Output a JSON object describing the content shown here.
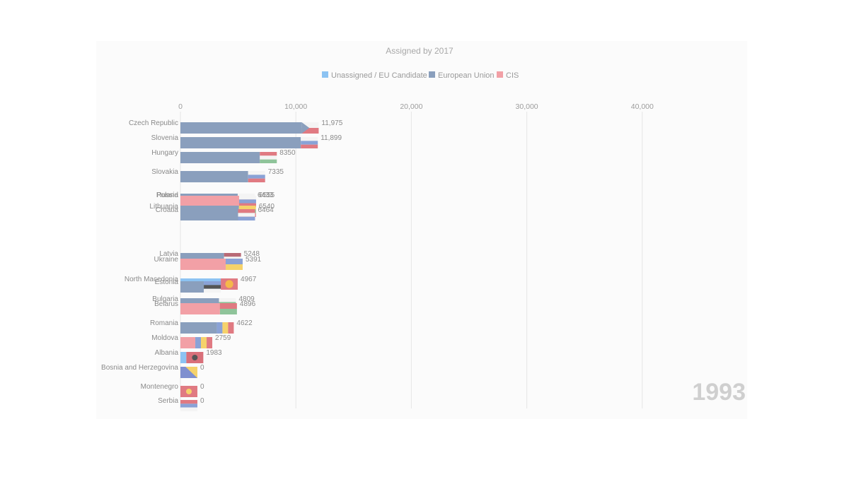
{
  "chart_data": {
    "type": "bar",
    "title": "Assigned by 2017",
    "year": "1993",
    "legend": [
      {
        "name": "Unassigned / EU Candidate",
        "color": "#8cc3f2"
      },
      {
        "name": "European Union",
        "color": "#8a9fbd"
      },
      {
        "name": "CIS",
        "color": "#f2a0a6"
      }
    ],
    "legend_position": "top",
    "xlim": [
      0,
      48000
    ],
    "xticks": [
      {
        "value": 0,
        "label": "0"
      },
      {
        "value": 10000,
        "label": "10,000"
      },
      {
        "value": 20000,
        "label": "20,000"
      },
      {
        "value": 30000,
        "label": "30,000"
      },
      {
        "value": 40000,
        "label": "40,000"
      }
    ],
    "grid": true,
    "categories": [
      "Czech Republic",
      "Slovenia",
      "Hungary",
      "Slovakia",
      "Poland",
      "Russia",
      "Lithuania",
      "Croatia",
      "Latvia",
      "Ukraine",
      "North Macedonia",
      "Estonia",
      "Bulgaria",
      "Belarus",
      "Romania",
      "Moldova",
      "Albania",
      "Bosnia and Herzegovina",
      "Montenegro",
      "Serbia"
    ],
    "values": [
      11975,
      11899,
      8350,
      7335,
      6433,
      6555,
      6540,
      6464,
      5248,
      5391,
      4967,
      3500,
      4809,
      4896,
      4622,
      2759,
      1983,
      0,
      0,
      0
    ],
    "value_labels": [
      "11,975",
      "11,899",
      "8350",
      "7335",
      "6433",
      "6555",
      "6540",
      "6464",
      "5248",
      "5391",
      "4967",
      "",
      "4809",
      "4896",
      "4622",
      "2759",
      "1983",
      "0",
      "0",
      "0"
    ],
    "groups": [
      "eu",
      "eu",
      "eu",
      "eu",
      "eu",
      "cis",
      "eu",
      "eu",
      "eu",
      "cis",
      "cand",
      "eu",
      "eu",
      "cis",
      "eu",
      "cis",
      "cand",
      "eu",
      "cand",
      "cand"
    ],
    "flags": [
      "czech-flag",
      "slovenia-flag",
      "hungary-flag",
      "slovakia-flag",
      "poland-flag",
      "russia-flag",
      "lithuania-flag",
      "croatia-flag",
      "latvia-flag",
      "ukraine-flag",
      "north-macedonia-flag",
      "estonia-flag",
      "bulgaria-flag",
      "belarus-flag",
      "romania-flag",
      "moldova-flag",
      "albania-flag",
      "bosnia-flag",
      "montenegro-flag",
      "serbia-flag"
    ]
  }
}
